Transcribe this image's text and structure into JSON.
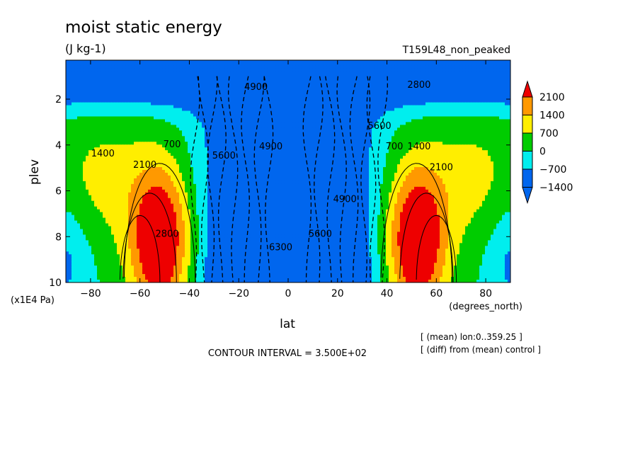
{
  "chart_data": {
    "type": "contour",
    "title": "moist static energy",
    "units": "(J kg-1)",
    "experiment": "T159L48_non_peaked",
    "xlabel": "lat",
    "x_units": "(degrees_north)",
    "ylabel": "plev",
    "y_units": "(x1E4 Pa)",
    "xlim": [
      -90,
      90
    ],
    "ylim": [
      10,
      0.3
    ],
    "x_ticks": [
      -80,
      -60,
      -40,
      -20,
      0,
      20,
      40,
      60,
      80
    ],
    "x_tick_labels": [
      "-80",
      "-60",
      "-40",
      "-20",
      "0",
      "20",
      "40",
      "60",
      "80"
    ],
    "y_ticks": [
      2,
      4,
      6,
      8,
      10
    ],
    "y_tick_labels": [
      "2",
      "4",
      "6",
      "8",
      "10"
    ],
    "contour_interval_text": "CONTOUR INTERVAL = 3.500E+02",
    "notes": [
      "[ (mean) lon:0..359.25 ]",
      "[ (diff) from (mean) control ]"
    ],
    "colorbar": {
      "levels": [
        -1400,
        -700,
        0,
        700,
        1400,
        2100
      ],
      "labels": [
        "2100",
        "1400",
        "700",
        "0",
        "−700",
        "−1400"
      ],
      "colors": [
        "#ee0000",
        "#ff9900",
        "#ffee00",
        "#00cc00",
        "#00eeee",
        "#0066ee"
      ]
    },
    "contour_labels": [
      {
        "text": "4900",
        "lat": -13,
        "plev": 1.6
      },
      {
        "text": "2800",
        "lat": 53,
        "plev": 1.5
      },
      {
        "text": "1400",
        "lat": -75,
        "plev": 4.5
      },
      {
        "text": "2100",
        "lat": -58,
        "plev": 5.0
      },
      {
        "text": "700",
        "lat": -47,
        "plev": 4.1
      },
      {
        "text": "5600",
        "lat": -26,
        "plev": 4.6
      },
      {
        "text": "4900",
        "lat": -7,
        "plev": 4.2
      },
      {
        "text": "4900",
        "lat": 23,
        "plev": 6.5
      },
      {
        "text": "2800",
        "lat": -49,
        "plev": 8.0
      },
      {
        "text": "6300",
        "lat": -3,
        "plev": 8.6
      },
      {
        "text": "5600",
        "lat": 13,
        "plev": 8.0
      },
      {
        "text": "5600",
        "lat": 37,
        "plev": 3.3
      },
      {
        "text": "700",
        "lat": 43,
        "plev": 4.2
      },
      {
        "text": "1400",
        "lat": 53,
        "plev": 4.2
      },
      {
        "text": "2100",
        "lat": 62,
        "plev": 5.1
      }
    ]
  }
}
